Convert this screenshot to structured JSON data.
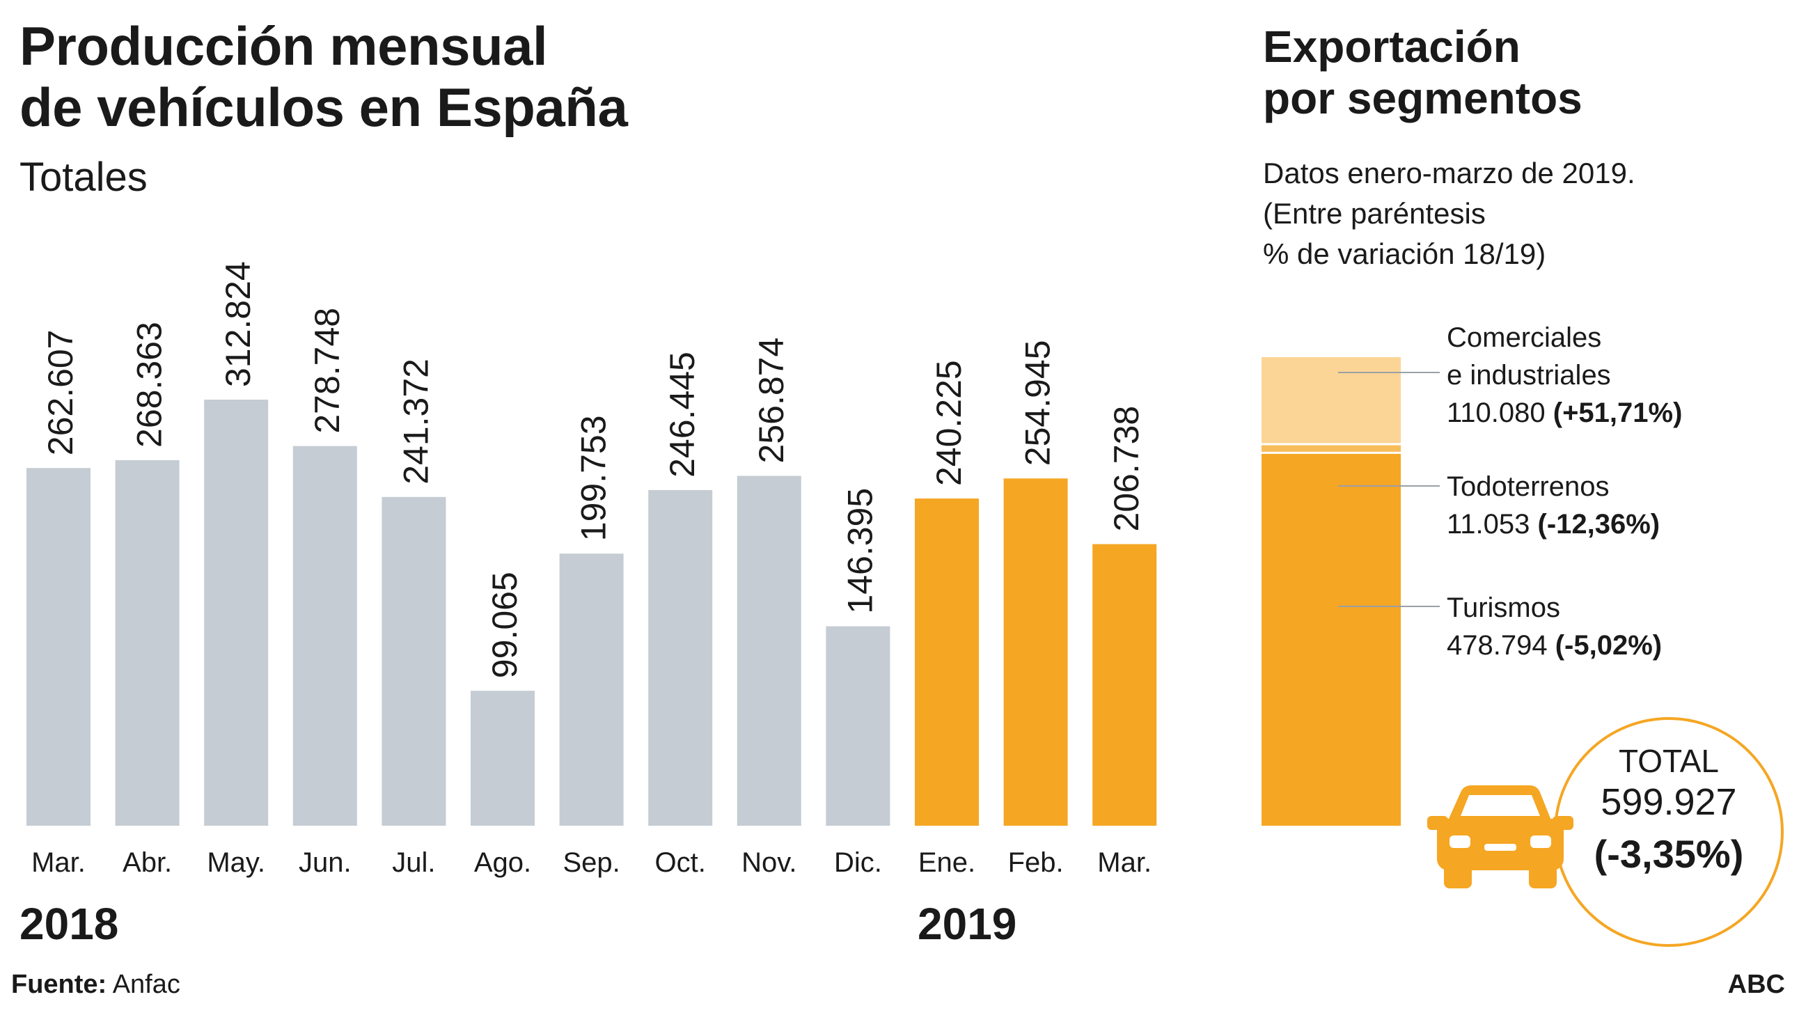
{
  "title": {
    "line1": "Producción mensual",
    "line2": "de vehículos en España",
    "subtitle": "Totales"
  },
  "chart_data": [
    {
      "type": "bar",
      "title": "Producción mensual de vehículos en España",
      "subtitle": "Totales",
      "categories": [
        "Mar.",
        "Abr.",
        "May.",
        "Jun.",
        "Jul.",
        "Ago.",
        "Sep.",
        "Oct.",
        "Nov.",
        "Dic.",
        "Ene.",
        "Feb.",
        "Mar."
      ],
      "values": [
        262607,
        268363,
        312824,
        278748,
        241372,
        99065,
        199753,
        246445,
        256874,
        146395,
        240225,
        254945,
        206738
      ],
      "value_labels": [
        "262.607",
        "268.363",
        "312.824",
        "278.748",
        "241.372",
        "99.065",
        "199.753",
        "246.445",
        "256.874",
        "146.395",
        "240.225",
        "254.945",
        "206.738"
      ],
      "years": [
        {
          "label": "2018",
          "categories": [
            0,
            9
          ],
          "color": "#c5ccd3"
        },
        {
          "label": "2019",
          "categories": [
            10,
            12
          ],
          "color": "#f5a623"
        }
      ],
      "ylim": [
        0,
        312824
      ],
      "grid": false,
      "xlabel": "",
      "ylabel": ""
    },
    {
      "type": "bar",
      "stacked": true,
      "title": "Exportación por segmentos",
      "series": [
        {
          "name": "Turismos",
          "value": 478794,
          "value_label": "478.794",
          "variation": "(-5,02%)",
          "color": "#f5a623"
        },
        {
          "name": "Todoterrenos",
          "value": 11053,
          "value_label": "11.053",
          "variation": "(-12,36%)",
          "color": "#f8bd5a"
        },
        {
          "name": "Comerciales e industriales",
          "value": 110080,
          "value_label": "110.080",
          "variation": "(+51,71%)",
          "color": "#fbd596"
        }
      ],
      "total": {
        "label": "TOTAL",
        "value": 599927,
        "value_label": "599.927",
        "variation": "(-3,35%)"
      }
    }
  ],
  "export": {
    "title_line1": "Exportación",
    "title_line2": "por segmentos",
    "note_line1": "Datos enero-marzo de 2019.",
    "note_line2": "(Entre paréntesis",
    "note_line3": "% de variación 18/19)",
    "labels": {
      "comerciales_line1": "Comerciales",
      "comerciales_line2": "e industriales",
      "comerciales_value": "110.080",
      "comerciales_var": "(+51,71%)",
      "todoterrenos": "Todoterrenos",
      "todoterrenos_value": "11.053",
      "todoterrenos_var": "(-12,36%)",
      "turismos": "Turismos",
      "turismos_value": "478.794",
      "turismos_var": "(-5,02%)"
    },
    "total_label": "TOTAL",
    "total_value": "599.927",
    "total_var": "(-3,35%)",
    "icon": "car-icon"
  },
  "years": {
    "y2018": "2018",
    "y2019": "2019"
  },
  "footer": {
    "source_label": "Fuente:",
    "source": "Anfac",
    "brand": "ABC"
  },
  "colors": {
    "gray": "#c5ccd3",
    "orange": "#f5a623",
    "orange_mid": "#f8bd5a",
    "orange_light": "#fbd596",
    "line": "#9aa0a6"
  }
}
